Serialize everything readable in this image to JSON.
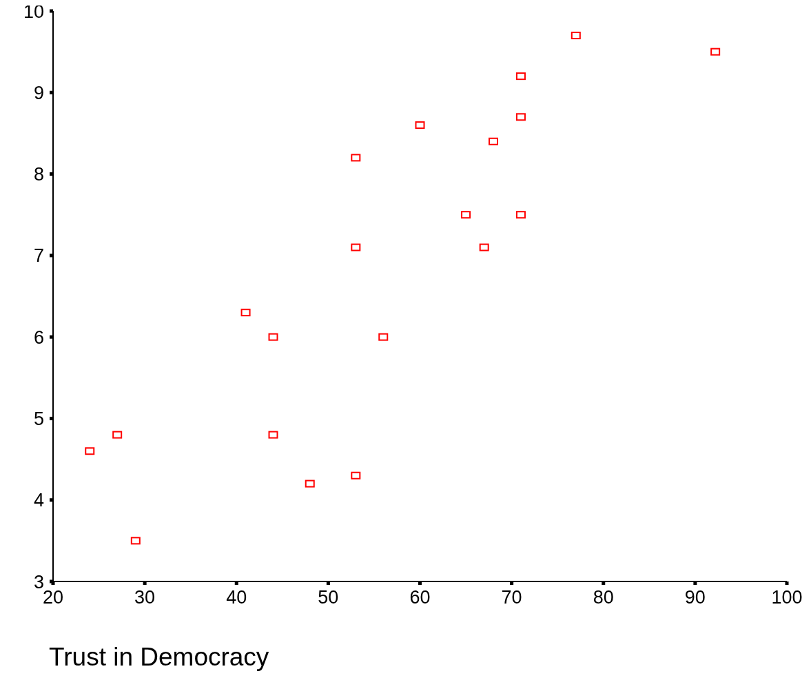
{
  "chart_data": {
    "type": "scatter",
    "xlabel": "Trust in Democracy",
    "marker": "square",
    "grid": false,
    "legend": false,
    "xlim": [
      20,
      100
    ],
    "xticks": [
      20,
      30,
      40,
      50,
      60,
      70,
      80,
      90,
      100
    ],
    "ylim": [
      3,
      10
    ],
    "yticks": [
      3,
      4,
      5,
      6,
      7,
      8,
      9,
      10
    ],
    "series": [
      {
        "color": "#ff0000",
        "x": [
          77,
          92.2,
          71,
          71,
          60,
          68,
          53,
          65,
          71,
          53,
          67,
          41,
          44,
          56,
          27,
          24,
          44,
          53,
          48,
          29
        ],
        "values": [
          9.7,
          9.5,
          9.2,
          8.7,
          8.6,
          8.4,
          8.2,
          7.5,
          7.5,
          7.1,
          7.1,
          6.3,
          6.0,
          6.0,
          4.8,
          4.6,
          4.8,
          4.3,
          4.2,
          3.5
        ]
      }
    ]
  }
}
